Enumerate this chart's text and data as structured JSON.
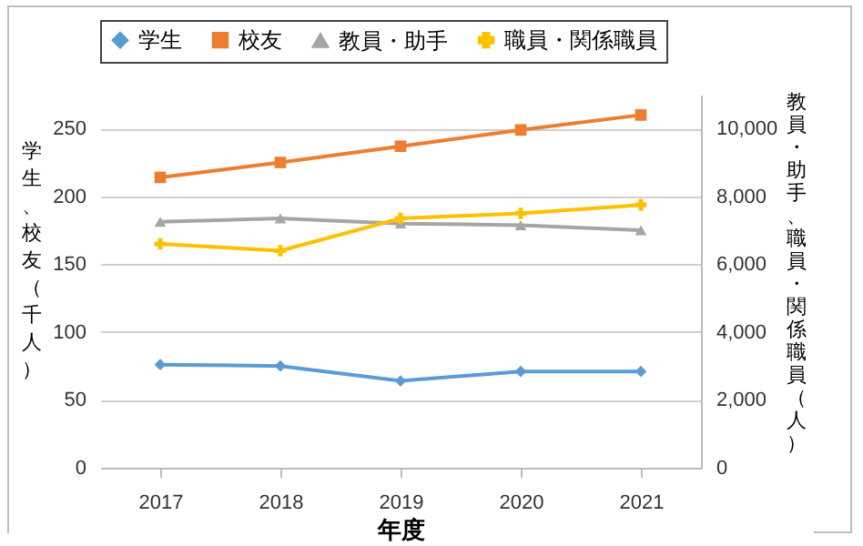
{
  "chart_data": {
    "type": "line",
    "xlabel": "年度",
    "ylabel": "学生、校友（千人）",
    "y2label": "教員・助手、職員・関係職員（人）",
    "categories": [
      "2017",
      "2018",
      "2019",
      "2020",
      "2021"
    ],
    "series": [
      {
        "name": "学生",
        "color": "#5b9bd5",
        "marker": "diamond",
        "values": [
          76,
          75,
          64,
          71,
          71
        ]
      },
      {
        "name": "校友",
        "color": "#ed7d31",
        "marker": "square",
        "values": [
          214,
          225,
          237,
          249,
          260
        ]
      },
      {
        "name": "教員・助手",
        "color": "#a5a5a5",
        "marker": "triangle",
        "axis": "y2",
        "values": [
          7250,
          7350,
          7200,
          7150,
          7000
        ]
      },
      {
        "name": "職員・関係職員",
        "color": "#ffc000",
        "marker": "cross",
        "axis": "y2",
        "values": [
          6600,
          6400,
          7350,
          7500,
          7750
        ]
      }
    ],
    "ylim": [
      0,
      275
    ],
    "yticks": [
      0,
      50,
      100,
      150,
      200,
      250
    ],
    "y2lim": [
      0,
      11000
    ],
    "y2ticks": [
      0,
      {
        "value": 2000,
        "label": "2,000"
      },
      {
        "value": 4000,
        "label": "4,000"
      },
      {
        "value": 6000,
        "label": "6,000"
      },
      {
        "value": 8000,
        "label": "8,000"
      },
      {
        "value": 10000,
        "label": "10,000"
      }
    ],
    "grid": "y",
    "legend": "top"
  }
}
